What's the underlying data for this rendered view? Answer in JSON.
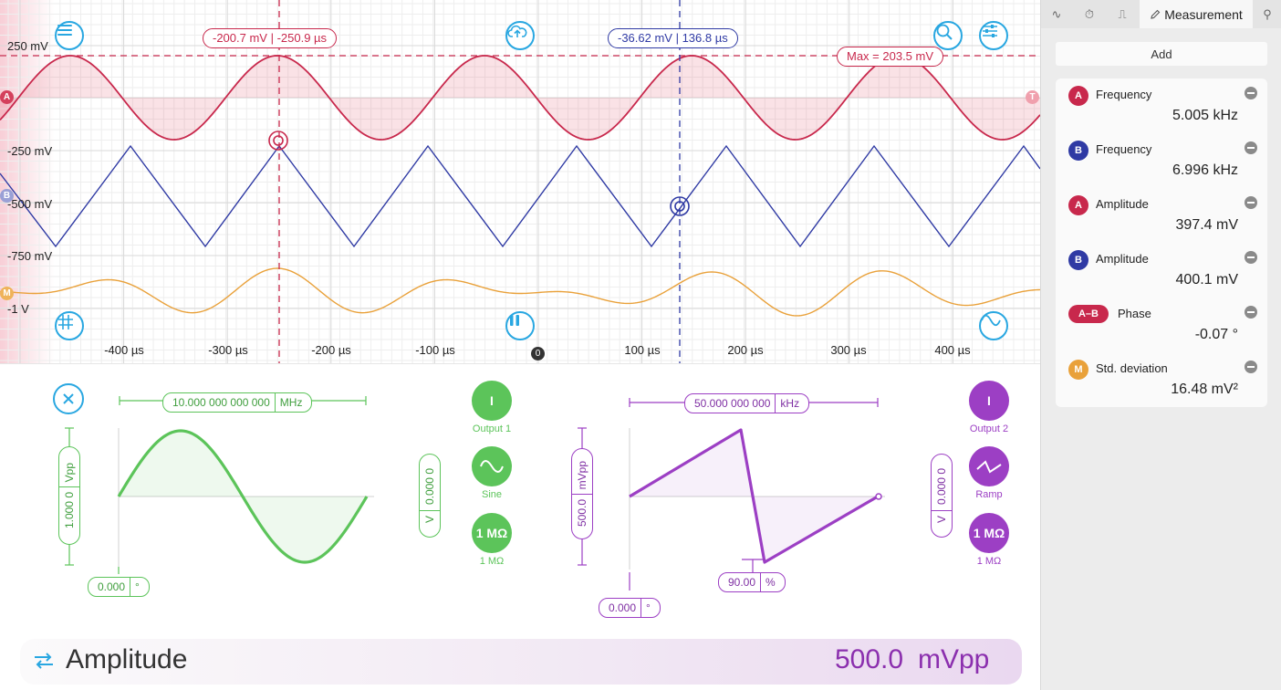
{
  "scope": {
    "y_labels": [
      "250 mV",
      "-250 mV",
      "-500 mV",
      "-750 mV",
      "-1 V"
    ],
    "x_labels": [
      "-400 µs",
      "-300 µs",
      "-200 µs",
      "-100 µs",
      "100 µs",
      "200 µs",
      "300 µs",
      "400 µs"
    ],
    "cursor_a_readout": "-200.7 mV | -250.9 µs",
    "cursor_b_readout": "-36.62 mV | 136.8 µs",
    "max_readout": "Max = 203.5 mV",
    "zero_marker": "0",
    "channel_marks": {
      "a": "A",
      "b": "B",
      "m": "M",
      "t": "T"
    },
    "colors": {
      "a": "#c8284c",
      "b": "#2f3aa4",
      "m": "#e9a13a",
      "accent": "#29a7e1"
    },
    "icons": [
      "menu-icon",
      "cloud-upload-icon",
      "search-icon",
      "sliders-icon",
      "grid-icon",
      "pause-icon",
      "sine-wave-icon"
    ]
  },
  "sidebar": {
    "tabs": [
      {
        "icon": "wave-icon",
        "label": "∿"
      },
      {
        "icon": "timer-icon",
        "label": "⏱"
      },
      {
        "icon": "trigger-icon",
        "label": "⎍"
      },
      {
        "icon": "pencil-icon",
        "label": "Measurement"
      },
      {
        "icon": "pin-icon",
        "label": "⚲"
      }
    ],
    "add_label": "Add",
    "measurements": [
      {
        "badge": "A",
        "name": "Frequency",
        "value": "5.005 kHz",
        "color": "#c8284c"
      },
      {
        "badge": "B",
        "name": "Frequency",
        "value": "6.996 kHz",
        "color": "#2f3aa4"
      },
      {
        "badge": "A",
        "name": "Amplitude",
        "value": "397.4 mV",
        "color": "#c8284c"
      },
      {
        "badge": "B",
        "name": "Amplitude",
        "value": "400.1 mV",
        "color": "#2f3aa4"
      },
      {
        "badge": "A–B",
        "name": "Phase",
        "value": "-0.07 °",
        "color": "#c8284c"
      },
      {
        "badge": "M",
        "name": "Std. deviation",
        "value": "16.48 mV²",
        "color": "#e9a13a"
      }
    ]
  },
  "generator": {
    "output1": {
      "color": "#5cc45a",
      "frequency": "10.000 000 000 000",
      "frequency_unit": "MHz",
      "amplitude": "1.000 0",
      "amplitude_unit": "Vpp",
      "phase": "0.000",
      "phase_unit": "°",
      "offset": "0.000 0",
      "offset_sym": "V",
      "button_on": "I",
      "label": "Output 1",
      "shape_label": "Sine",
      "impedance": "1 MΩ",
      "impedance_label": "1 MΩ"
    },
    "output2": {
      "color": "#9c3fc4",
      "frequency": "50.000 000 000",
      "frequency_unit": "kHz",
      "amplitude": "500.0",
      "amplitude_unit": "mVpp",
      "phase": "0.000",
      "phase_unit": "°",
      "symmetry": "90.00",
      "symmetry_unit": "%",
      "offset": "0.000 0",
      "offset_sym": "V",
      "button_on": "I",
      "label": "Output 2",
      "shape_label": "Ramp",
      "impedance": "1 MΩ",
      "impedance_label": "1 MΩ"
    },
    "close_icon": "close-icon"
  },
  "bottom_bar": {
    "title": "Amplitude",
    "value": "500.0",
    "unit": "mVpp",
    "icon": "swap-arrows-icon"
  }
}
